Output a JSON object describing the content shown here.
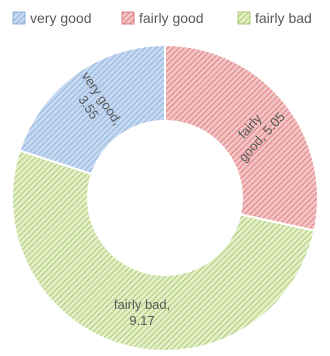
{
  "chart_data": {
    "type": "pie",
    "variant": "donut",
    "title": "",
    "legend_position": "top",
    "slices": [
      {
        "name": "very good",
        "value": 3.55,
        "label": [
          "very good,",
          "3.55"
        ],
        "fill": "#c6d9f1",
        "stripe": "#7ea7d8"
      },
      {
        "name": "fairly good",
        "value": 5.05,
        "label": [
          "fairly",
          "good, 5.05"
        ],
        "fill": "#f2c4c4",
        "stripe": "#d9656a"
      },
      {
        "name": "fairly bad",
        "value": 9.17,
        "label": [
          "fairly bad,",
          "9.17"
        ],
        "fill": "#e3efc7",
        "stripe": "#9bbb59"
      }
    ]
  }
}
